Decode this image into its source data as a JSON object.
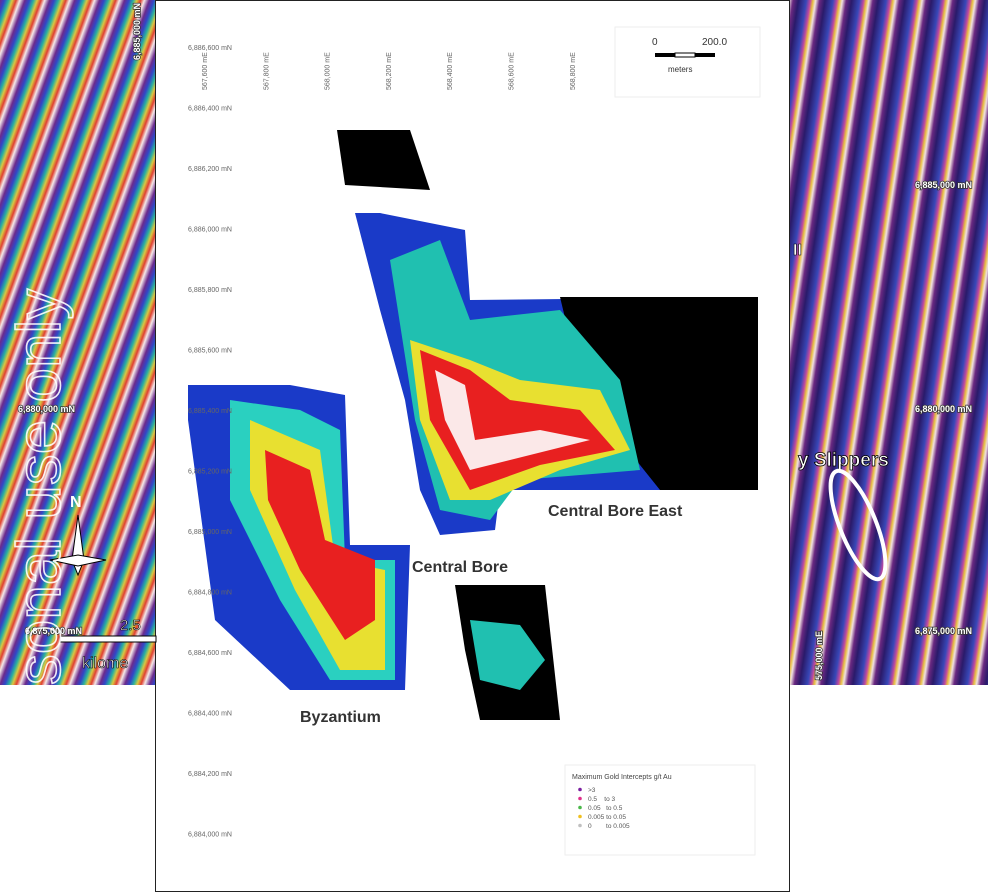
{
  "map": {
    "northings": [
      "6,886,600 mN",
      "6,886,400 mN",
      "6,886,200 mN",
      "6,886,000 mN",
      "6,885,800 mN",
      "6,885,600 mN",
      "6,885,400 mN",
      "6,885,200 mN",
      "6,885,000 mN",
      "6,884,800 mN",
      "6,884,600 mN",
      "6,884,400 mN",
      "6,884,200 mN",
      "6,884,000 mN"
    ],
    "eastings": [
      "567,600 mE",
      "567,800 mE",
      "568,000 mE",
      "568,200 mE",
      "568,400 mE",
      "568,600 mE",
      "568,800 mE"
    ],
    "scale": {
      "start": "0",
      "end": "200.0",
      "unit": "meters"
    },
    "labels": [
      "Central Bore East",
      "Central Bore",
      "Byzantium"
    ],
    "legend": {
      "title": "Maximum Gold Intercepts g/t Au",
      "items": [
        {
          "label": ">3",
          "color": "#7a1fa0"
        },
        {
          "label": "0.5    to 3",
          "color": "#e0308a"
        },
        {
          "label": "0.05   to 0.5",
          "color": "#4ab84a"
        },
        {
          "label": "0.005 to 0.05",
          "color": "#f0c020"
        },
        {
          "label": "0        to 0.005",
          "color": "#c0c0c0"
        }
      ]
    }
  },
  "left_panel": {
    "northings": [
      "6,885,000 mN",
      "6,880,000 mN",
      "6,875,000 mN"
    ],
    "north": "N",
    "scale_value": "2.5",
    "scale_unit": "kilome"
  },
  "right_panel": {
    "northings": [
      "6,885,000 mN",
      "6,880,000 mN",
      "6,875,000 mN"
    ],
    "easting": "575,000 mE",
    "name": "y Slippers",
    "fragment": "II"
  },
  "watermark": "For personal use only"
}
